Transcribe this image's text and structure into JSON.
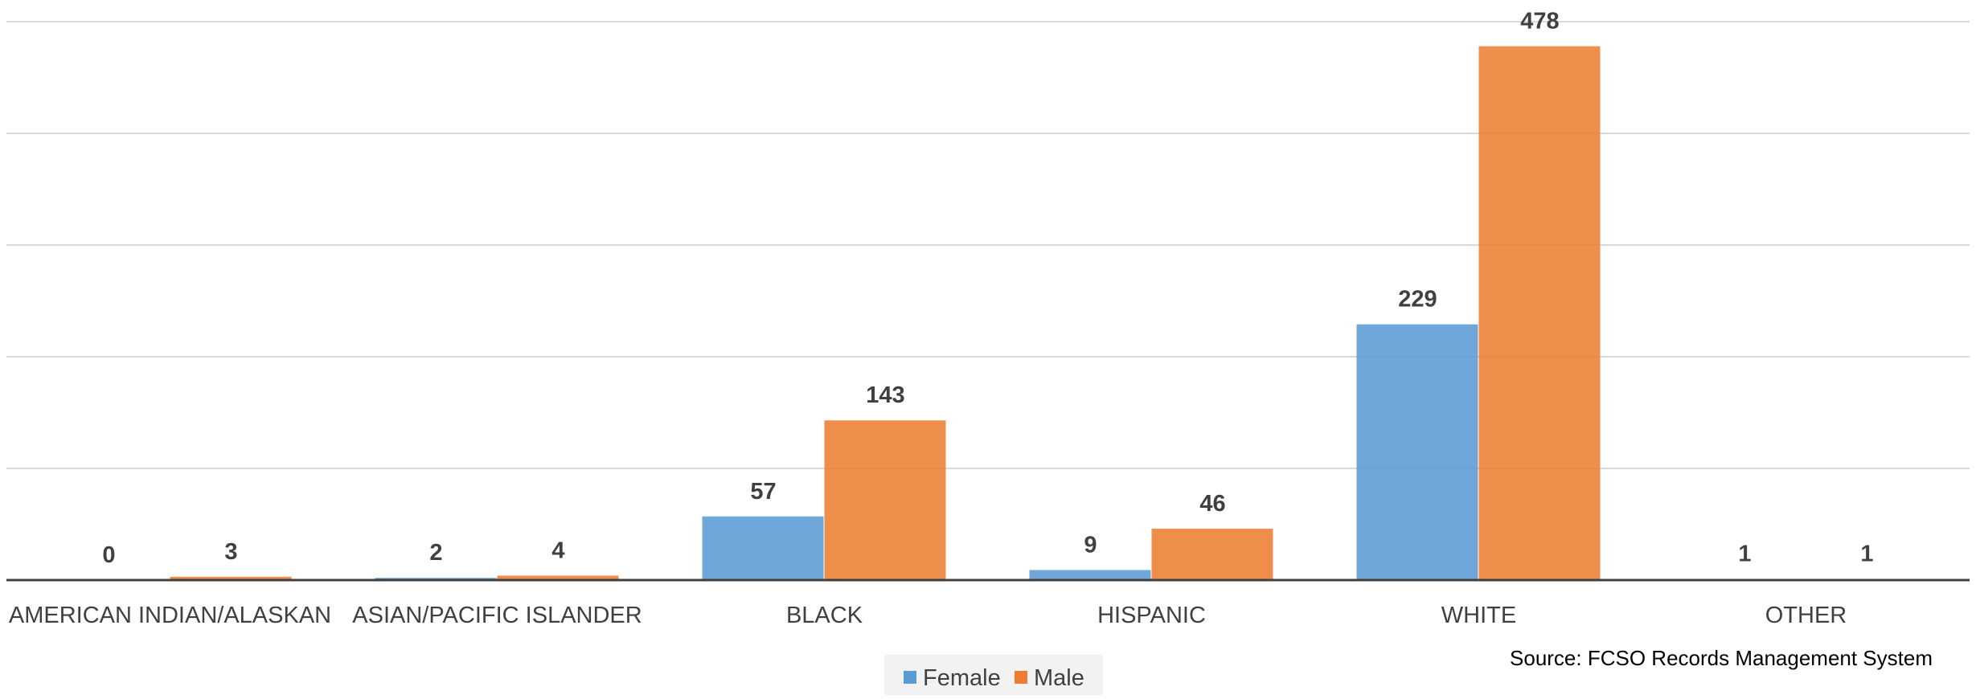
{
  "chart_data": {
    "type": "bar",
    "categories": [
      "AMERICAN INDIAN/ALASKAN",
      "ASIAN/PACIFIC ISLANDER",
      "BLACK",
      "HISPANIC",
      "WHITE",
      "OTHER"
    ],
    "series": [
      {
        "name": "Female",
        "values": [
          0,
          2,
          57,
          9,
          229,
          1
        ],
        "color": "#5b9bd5"
      },
      {
        "name": "Male",
        "values": [
          3,
          4,
          143,
          46,
          478,
          1
        ],
        "color": "#ed7d31"
      }
    ],
    "title": "",
    "xlabel": "",
    "ylabel": "",
    "ylim": [
      0,
      500
    ],
    "grid": true,
    "legend_position": "bottom-center",
    "source_note": "Source: FCSO Records Management System"
  }
}
